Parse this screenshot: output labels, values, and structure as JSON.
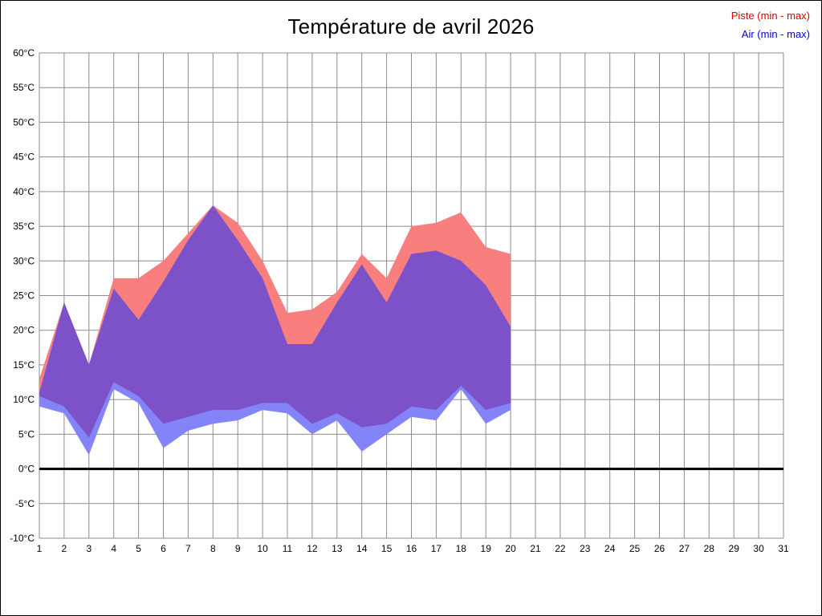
{
  "title": "Température de avril 2026",
  "legend": {
    "piste_label": "Piste (min - max)",
    "air_label": "Air (min - max)"
  },
  "chart_data": {
    "type": "area",
    "title": "Température de avril 2026",
    "xlabel": "",
    "ylabel": "",
    "unit": "°C",
    "xlim": [
      1,
      31
    ],
    "ylim": [
      -10,
      60
    ],
    "y_step": 5,
    "grid": true,
    "legend_position": "top-right",
    "x_days": [
      1,
      2,
      3,
      4,
      5,
      6,
      7,
      8,
      9,
      10,
      11,
      12,
      13,
      14,
      15,
      16,
      17,
      18,
      19,
      20
    ],
    "series": [
      {
        "name": "Piste max",
        "values": [
          13,
          24,
          15,
          27.5,
          27.5,
          30,
          34,
          38,
          35.5,
          30,
          22.5,
          23,
          25.5,
          31,
          27.5,
          35,
          35.5,
          37,
          32,
          31
        ]
      },
      {
        "name": "Piste min",
        "values": [
          10.5,
          9,
          4.5,
          12.5,
          10.5,
          6.5,
          7.5,
          8.5,
          8.5,
          9.5,
          9.5,
          6.5,
          8,
          6,
          6.5,
          9,
          8.5,
          12,
          8.5,
          9.5
        ]
      },
      {
        "name": "Air max",
        "values": [
          11,
          24,
          15,
          26,
          21.5,
          27,
          33,
          38,
          33,
          27.5,
          18,
          18,
          24,
          29.5,
          24,
          31,
          31.5,
          30,
          26.5,
          20.5
        ]
      },
      {
        "name": "Air min",
        "values": [
          9,
          8,
          2,
          11.5,
          9.5,
          3,
          5.5,
          6.5,
          7,
          8.5,
          8,
          5,
          7,
          2.5,
          5,
          7.5,
          7,
          11.5,
          6.5,
          8.5
        ]
      }
    ],
    "y_tick_labels": [
      "60°C",
      "55°C",
      "50°C",
      "45°C",
      "40°C",
      "35°C",
      "30°C",
      "25°C",
      "20°C",
      "15°C",
      "10°C",
      "5°C",
      "0°C",
      "-5°C",
      "-10°C"
    ],
    "x_tick_labels": [
      "1",
      "2",
      "3",
      "4",
      "5",
      "6",
      "7",
      "8",
      "9",
      "10",
      "11",
      "12",
      "13",
      "14",
      "15",
      "16",
      "17",
      "18",
      "19",
      "20",
      "21",
      "22",
      "23",
      "24",
      "25",
      "26",
      "27",
      "28",
      "29",
      "30",
      "31"
    ],
    "colors": {
      "piste_band": "#f97e7e",
      "air_band": "#8484f9",
      "overlap_band": "#7d52c8",
      "grid": "#8c8c8c",
      "zero_line": "#000000",
      "piste_text": "#dd0000",
      "air_text": "#0000dd"
    }
  }
}
